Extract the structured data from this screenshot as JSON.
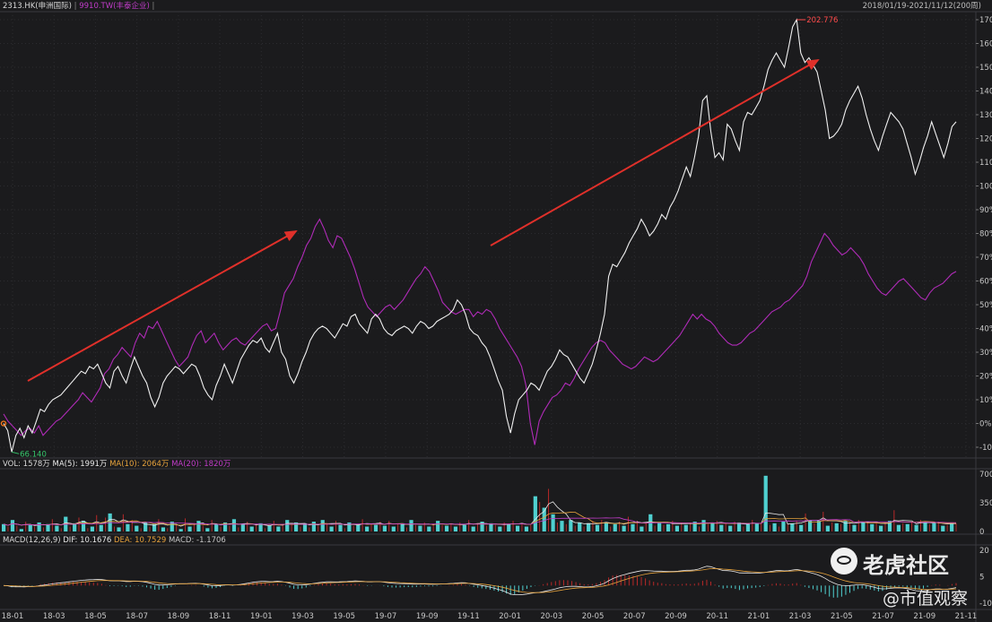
{
  "header": {
    "symbol1": "2313.HK(申洲国际)",
    "separator": "|",
    "symbol2": "9910.TW(丰泰企业)",
    "range": "2018/01/19-2021/11/12(200周)"
  },
  "colors": {
    "background": "#1b1b1d",
    "grid": "#2c2c30",
    "price_line_1": "#f0f0f0",
    "price_line_2": "#b02bb8",
    "arrow": "#e0302a",
    "vol_bar": "#4fd0d0",
    "vol_bar_down": "#b82828",
    "ma5": "#e8e8e8",
    "ma10": "#e6a23c",
    "ma20": "#c03cc8",
    "dif": "#e8e8e8",
    "dea": "#e6a23c",
    "max_label": "#ff4b4b",
    "min_label": "#35c56a"
  },
  "main_panel": {
    "max_label": "202.776",
    "min_label": "66.140",
    "y_ticks": [
      "170%",
      "160%",
      "150%",
      "140%",
      "130%",
      "120%",
      "110%",
      "100%",
      "90%",
      "80%",
      "70%",
      "60%",
      "50%",
      "40%",
      "30%",
      "20%",
      "10%",
      "0%",
      "-10%"
    ]
  },
  "volume_panel": {
    "label": "VOL: 1578万",
    "ma5": "MA(5): 1991万",
    "ma10": "MA(10): 2064万",
    "ma20": "MA(20): 1820万",
    "y_ticks": [
      "700",
      "350",
      "0"
    ]
  },
  "macd_panel": {
    "label": "MACD(12,26,9)",
    "dif": "DIF: 10.1676",
    "dea": "DEA: 10.7529",
    "macd": "MACD: -1.1706",
    "y_ticks": [
      "20",
      "5",
      "-10"
    ]
  },
  "x_ticks": [
    "18-01",
    "18-03",
    "18-05",
    "18-07",
    "18-09",
    "18-11",
    "19-01",
    "19-03",
    "19-05",
    "19-07",
    "19-09",
    "19-11",
    "20-01",
    "20-03",
    "20-05",
    "20-07",
    "20-09",
    "20-11",
    "21-01",
    "21-03",
    "21-05",
    "21-07",
    "21-09",
    "21-11"
  ],
  "watermark": {
    "brand": "老虎社区",
    "author": "@市值观察"
  },
  "chart_data": {
    "type": "line",
    "y_unit": "%",
    "ylim": [
      -14,
      171
    ],
    "series": [
      {
        "name": "2313.HK(申洲国际)",
        "values": [
          0,
          -3,
          -12,
          -5,
          -2,
          -6,
          -1,
          -4,
          1,
          6,
          5,
          8,
          10,
          11,
          12,
          14,
          16,
          18,
          20,
          22,
          21,
          24,
          23,
          25,
          21,
          17,
          15,
          22,
          24,
          20,
          17,
          23,
          28,
          24,
          20,
          17,
          11,
          7,
          11,
          17,
          20,
          22,
          24,
          23,
          21,
          23,
          25,
          24,
          20,
          15,
          12,
          10,
          16,
          20,
          25,
          21,
          17,
          22,
          27,
          30,
          33,
          35,
          34,
          36,
          32,
          30,
          34,
          38,
          30,
          27,
          20,
          17,
          21,
          26,
          30,
          35,
          38,
          40,
          41,
          40,
          38,
          36,
          39,
          42,
          41,
          45,
          46,
          42,
          40,
          38,
          44,
          46,
          44,
          40,
          38,
          37,
          39,
          40,
          41,
          40,
          38,
          41,
          43,
          42,
          40,
          41,
          43,
          44,
          45,
          46,
          48,
          52,
          50,
          46,
          40,
          38,
          37,
          34,
          32,
          28,
          23,
          18,
          14,
          3,
          -4,
          4,
          10,
          12,
          14,
          17,
          16,
          14,
          18,
          22,
          24,
          27,
          31,
          29,
          28,
          25,
          22,
          19,
          17,
          21,
          25,
          31,
          38,
          46,
          62,
          67,
          66,
          69,
          72,
          76,
          79,
          82,
          86,
          83,
          79,
          81,
          84,
          88,
          86,
          91,
          94,
          98,
          103,
          108,
          104,
          112,
          121,
          136,
          138,
          123,
          112,
          114,
          111,
          126,
          124,
          119,
          115,
          127,
          131,
          130,
          133,
          136,
          142,
          149,
          153,
          156,
          153,
          150,
          158,
          167,
          170,
          156,
          152,
          154,
          151,
          148,
          140,
          132,
          120,
          121,
          123,
          126,
          132,
          136,
          139,
          142,
          137,
          130,
          124,
          119,
          115,
          121,
          126,
          131,
          129,
          127,
          124,
          118,
          112,
          105,
          110,
          116,
          121,
          127,
          122,
          117,
          112,
          118,
          125,
          127
        ]
      },
      {
        "name": "9910.TW(丰泰企业)",
        "values": [
          4,
          1,
          -1,
          -3,
          -5,
          -3,
          -2,
          -4,
          -1,
          -5,
          -3,
          -1,
          1,
          2,
          4,
          6,
          8,
          10,
          13,
          11,
          9,
          12,
          15,
          21,
          23,
          27,
          29,
          32,
          30,
          28,
          34,
          38,
          36,
          41,
          40,
          43,
          39,
          35,
          31,
          27,
          24,
          26,
          28,
          33,
          37,
          39,
          34,
          36,
          38,
          34,
          31,
          33,
          35,
          36,
          34,
          33,
          35,
          37,
          39,
          41,
          42,
          39,
          40,
          47,
          55,
          58,
          61,
          66,
          70,
          75,
          78,
          83,
          86,
          82,
          77,
          74,
          79,
          78,
          74,
          70,
          65,
          59,
          53,
          49,
          47,
          45,
          47,
          49,
          50,
          48,
          50,
          52,
          55,
          58,
          61,
          63,
          66,
          64,
          60,
          56,
          51,
          49,
          47,
          46,
          47,
          48,
          48,
          45,
          47,
          46,
          48,
          47,
          44,
          40,
          37,
          34,
          31,
          28,
          24,
          16,
          0,
          -9,
          1,
          5,
          8,
          11,
          12,
          14,
          17,
          16,
          19,
          23,
          26,
          29,
          32,
          34,
          35,
          34,
          31,
          29,
          27,
          25,
          24,
          23,
          24,
          26,
          28,
          27,
          26,
          27,
          29,
          31,
          33,
          35,
          37,
          40,
          43,
          46,
          44,
          46,
          44,
          43,
          41,
          38,
          36,
          34,
          33,
          33,
          34,
          36,
          38,
          39,
          41,
          43,
          45,
          47,
          48,
          49,
          51,
          52,
          54,
          56,
          58,
          62,
          68,
          72,
          76,
          80,
          78,
          75,
          73,
          71,
          72,
          74,
          72,
          70,
          67,
          63,
          60,
          57,
          55,
          54,
          56,
          58,
          60,
          61,
          59,
          57,
          55,
          53,
          52,
          55,
          57,
          58,
          59,
          61,
          63,
          64
        ]
      }
    ],
    "volume": {
      "ylim": [
        0,
        700
      ],
      "values": [
        90,
        60,
        140,
        70,
        30,
        120,
        80,
        60,
        110,
        50,
        90,
        150,
        70,
        40,
        180,
        60,
        100,
        170,
        130,
        40,
        60,
        200,
        80,
        170,
        220,
        60,
        50,
        210,
        90,
        140,
        70,
        40,
        110,
        60,
        90,
        150,
        50,
        40,
        120,
        80,
        30,
        160,
        60,
        100,
        130,
        70,
        40,
        140,
        90,
        60,
        110,
        70,
        150,
        50,
        90,
        120,
        60,
        80,
        100,
        40,
        70,
        130,
        60,
        90,
        140,
        80,
        110,
        60,
        100,
        50,
        120,
        70,
        140,
        90,
        60,
        130,
        80,
        40,
        110,
        70,
        90,
        150,
        60,
        100,
        80,
        120,
        70,
        130,
        60,
        90,
        100,
        50,
        140,
        80,
        70,
        110,
        60,
        90,
        130,
        80,
        70,
        100,
        60,
        110,
        80,
        140,
        60,
        90,
        120,
        70,
        100,
        80,
        60,
        110,
        90,
        130,
        70,
        100,
        60,
        80,
        430,
        360,
        290,
        520,
        210,
        110,
        130,
        90,
        140,
        70,
        110,
        60,
        100,
        130,
        80,
        140,
        110,
        60,
        90,
        120,
        70,
        180,
        90,
        130,
        60,
        100,
        210,
        70,
        110,
        80,
        90,
        130,
        70,
        110,
        80,
        100,
        120,
        60,
        140,
        90,
        110,
        130,
        80,
        100,
        70,
        120,
        110,
        60,
        90,
        140,
        100,
        110,
        680,
        80,
        100,
        60,
        120,
        90,
        100,
        130,
        80,
        220,
        140,
        100,
        130,
        240,
        70,
        110,
        100,
        90,
        130,
        100,
        80,
        140,
        110,
        120,
        90,
        100,
        70,
        110,
        130,
        260,
        80,
        100,
        90,
        120,
        80,
        140,
        110,
        90,
        100,
        120,
        70,
        80,
        110,
        100
      ]
    }
  }
}
